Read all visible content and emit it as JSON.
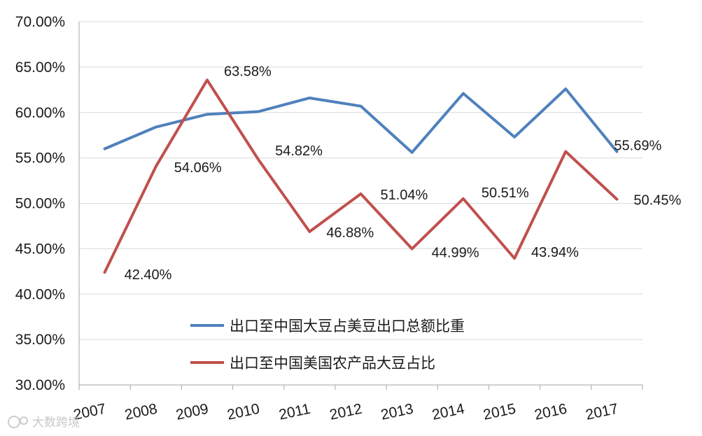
{
  "chart_data": {
    "type": "line",
    "categories": [
      "2007",
      "2008",
      "2009",
      "2010",
      "2011",
      "2012",
      "2013",
      "2014",
      "2015",
      "2016",
      "2017"
    ],
    "ylim": [
      30,
      70
    ],
    "yticks": [
      "30.00%",
      "35.00%",
      "40.00%",
      "45.00%",
      "50.00%",
      "55.00%",
      "60.00%",
      "65.00%",
      "70.00%"
    ],
    "grid": "horizontal",
    "legend_position": "bottom-center",
    "series": [
      {
        "name": "出口至中国大豆占美豆出口总额比重",
        "color": "#4f81bd",
        "values": [
          56.0,
          58.4,
          59.8,
          60.1,
          61.6,
          60.7,
          55.6,
          62.1,
          57.3,
          62.6,
          55.69
        ],
        "labels": [
          "",
          "",
          "",
          "",
          "",
          "",
          "",
          "",
          "",
          "",
          "55.69%"
        ]
      },
      {
        "name": "出口至中国美国农产品大豆占比",
        "color": "#c0504d",
        "values": [
          42.4,
          54.06,
          63.58,
          54.82,
          46.88,
          51.04,
          44.99,
          50.51,
          43.94,
          55.7,
          50.45
        ],
        "labels": [
          "42.40%",
          "54.06%",
          "63.58%",
          "54.82%",
          "46.88%",
          "51.04%",
          "44.99%",
          "50.51%",
          "43.94%",
          "",
          "50.45%"
        ]
      }
    ]
  },
  "watermark": {
    "icon": "logo-icon",
    "text": "大数跨境"
  }
}
